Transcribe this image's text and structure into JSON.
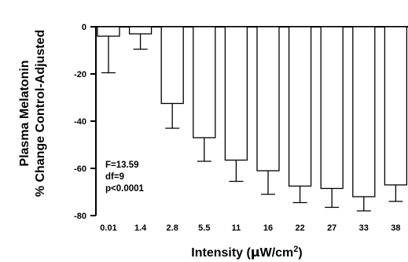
{
  "chart_data": {
    "type": "bar",
    "xlabel": "Intensity (μW/cm²)",
    "xlabel_parts": {
      "main": "Intensity (",
      "unit_mu": "μ",
      "unit_rest": "W/cm",
      "sup": "2",
      "close": ")"
    },
    "ylabel_line1": "Plasma Melatonin",
    "ylabel_line2": "% Change Control-Adjusted",
    "ylim": [
      -80,
      0
    ],
    "yticks": [
      0,
      -20,
      -40,
      -60,
      -80
    ],
    "ytick_labels": [
      "0",
      "-20",
      "-40",
      "-60",
      "-80"
    ],
    "categories": [
      "0.01",
      "1.4",
      "2.8",
      "5.5",
      "11",
      "16",
      "22",
      "27",
      "33",
      "38"
    ],
    "values": [
      -4,
      -3,
      -32.5,
      -47,
      -56.5,
      -61,
      -67.5,
      -68.5,
      -72,
      -67
    ],
    "error": [
      15.5,
      6.5,
      10.5,
      10,
      9,
      10,
      7,
      8,
      6,
      7
    ],
    "error_direction": "down",
    "bar_fill": "#ffffff",
    "stroke_color": "#000000",
    "annotations": [
      "F=13.59",
      "df=9",
      "p<0.0001"
    ],
    "grid": false
  }
}
